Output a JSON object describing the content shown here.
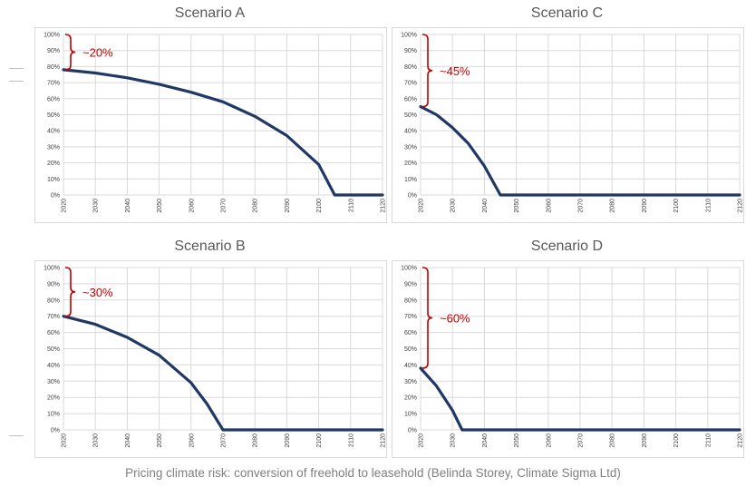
{
  "colors": {
    "line": "#1f3864",
    "annotation": "#c00000",
    "grid": "#d9d9d9",
    "tick_text": "#404040"
  },
  "caption": "Pricing climate risk: conversion of freehold to leasehold (Belinda Storey, Climate Sigma Ltd)",
  "chart_data": [
    {
      "type": "line",
      "title": "Scenario A",
      "xlim": [
        2020,
        2120
      ],
      "ylim": [
        0,
        100
      ],
      "x_ticks": [
        "2020",
        "2030",
        "2040",
        "2050",
        "2060",
        "2070",
        "2080",
        "2090",
        "2100",
        "2110",
        "2120"
      ],
      "y_ticks": [
        "0%",
        "10%",
        "20%",
        "30%",
        "40%",
        "50%",
        "60%",
        "70%",
        "80%",
        "90%",
        "100%"
      ],
      "grid": true,
      "series": [
        {
          "x": [
            2020,
            2030,
            2040,
            2050,
            2060,
            2070,
            2080,
            2090,
            2100,
            2105,
            2120
          ],
          "y": [
            78,
            76,
            73,
            69,
            64,
            58,
            49,
            37,
            19,
            0,
            0
          ]
        }
      ],
      "annotation": {
        "label": "~20%",
        "from": 78,
        "to": 100
      }
    },
    {
      "type": "line",
      "title": "Scenario C",
      "xlim": [
        2020,
        2120
      ],
      "ylim": [
        0,
        100
      ],
      "x_ticks": [
        "2020",
        "2030",
        "2040",
        "2050",
        "2060",
        "2070",
        "2080",
        "2090",
        "2100",
        "2110",
        "2120"
      ],
      "y_ticks": [
        "0%",
        "10%",
        "20%",
        "30%",
        "40%",
        "50%",
        "60%",
        "70%",
        "80%",
        "90%",
        "100%"
      ],
      "grid": true,
      "series": [
        {
          "x": [
            2020,
            2025,
            2030,
            2035,
            2040,
            2045,
            2120
          ],
          "y": [
            55,
            50,
            42,
            32,
            18,
            0,
            0
          ]
        }
      ],
      "annotation": {
        "label": "~45%",
        "from": 55,
        "to": 100
      }
    },
    {
      "type": "line",
      "title": "Scenario B",
      "xlim": [
        2020,
        2120
      ],
      "ylim": [
        0,
        100
      ],
      "x_ticks": [
        "2020",
        "2030",
        "2040",
        "2050",
        "2060",
        "2070",
        "2080",
        "2090",
        "2100",
        "2110",
        "2120"
      ],
      "y_ticks": [
        "0%",
        "10%",
        "20%",
        "30%",
        "40%",
        "50%",
        "60%",
        "70%",
        "80%",
        "90%",
        "100%"
      ],
      "grid": true,
      "series": [
        {
          "x": [
            2020,
            2030,
            2040,
            2050,
            2060,
            2065,
            2070,
            2120
          ],
          "y": [
            70,
            65,
            57,
            46,
            29,
            16,
            0,
            0
          ]
        }
      ],
      "annotation": {
        "label": "~30%",
        "from": 70,
        "to": 100
      }
    },
    {
      "type": "line",
      "title": "Scenario D",
      "xlim": [
        2020,
        2120
      ],
      "ylim": [
        0,
        100
      ],
      "x_ticks": [
        "2020",
        "2030",
        "2040",
        "2050",
        "2060",
        "2070",
        "2080",
        "2090",
        "2100",
        "2110",
        "2120"
      ],
      "y_ticks": [
        "0%",
        "10%",
        "20%",
        "30%",
        "40%",
        "50%",
        "60%",
        "70%",
        "80%",
        "90%",
        "100%"
      ],
      "grid": true,
      "series": [
        {
          "x": [
            2020,
            2025,
            2030,
            2033,
            2120
          ],
          "y": [
            38,
            27,
            12,
            0,
            0
          ]
        }
      ],
      "annotation": {
        "label": "~60%",
        "from": 38,
        "to": 100
      }
    }
  ]
}
